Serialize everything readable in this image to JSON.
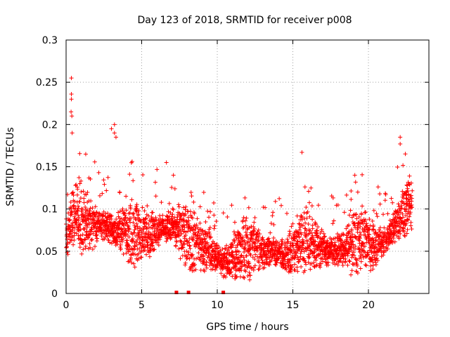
{
  "chart_data": {
    "type": "scatter",
    "title": "Day 123 of 2018, SRMTID for receiver p008",
    "xlabel": "GPS time / hours",
    "ylabel": "SRMTID / TECUs",
    "xlim": [
      0,
      24
    ],
    "ylim": [
      0,
      0.3
    ],
    "x_ticks": [
      0,
      5,
      10,
      15,
      20
    ],
    "y_ticks": [
      0,
      0.05,
      0.1,
      0.15,
      0.2,
      0.25,
      0.3
    ],
    "x_tick_labels": [
      "0",
      "5",
      "10",
      "15",
      "20"
    ],
    "y_tick_labels": [
      "0",
      "0.05",
      "0.1",
      "0.15",
      "0.2",
      "0.25",
      "0.3"
    ],
    "grid": true,
    "marker": "+",
    "marker_color": "#ff0000",
    "series_name": "SRMTID",
    "trend_knots": {
      "x": [
        0,
        0.3,
        0.6,
        1,
        2,
        3,
        4,
        5,
        6,
        7,
        7.6,
        8.5,
        9.5,
        10.5,
        11.5,
        12.5,
        13.5,
        14.5,
        15.5,
        16.5,
        17.5,
        18.5,
        19.5,
        20.5,
        21.5,
        22.2,
        22.9
      ],
      "y": [
        0.062,
        0.085,
        0.095,
        0.085,
        0.082,
        0.078,
        0.072,
        0.068,
        0.075,
        0.08,
        0.072,
        0.06,
        0.05,
        0.035,
        0.05,
        0.055,
        0.05,
        0.045,
        0.06,
        0.06,
        0.05,
        0.055,
        0.065,
        0.055,
        0.07,
        0.095,
        0.11
      ]
    },
    "spikes": [
      {
        "x": 0.35,
        "y": 0.255
      },
      {
        "x": 0.35,
        "y": 0.236
      },
      {
        "x": 0.35,
        "y": 0.23
      },
      {
        "x": 0.33,
        "y": 0.215
      },
      {
        "x": 0.38,
        "y": 0.21
      },
      {
        "x": 0.4,
        "y": 0.19
      },
      {
        "x": 3.0,
        "y": 0.195
      },
      {
        "x": 3.2,
        "y": 0.2
      },
      {
        "x": 3.2,
        "y": 0.19
      },
      {
        "x": 3.3,
        "y": 0.185
      },
      {
        "x": 1.3,
        "y": 0.165
      },
      {
        "x": 15.6,
        "y": 0.167
      },
      {
        "x": 22.1,
        "y": 0.185
      },
      {
        "x": 22.1,
        "y": 0.177
      },
      {
        "x": 7.1,
        "y": 0.14
      },
      {
        "x": 19.1,
        "y": 0.14
      }
    ],
    "gap_markers_x": [
      7.3,
      8.1,
      10.4
    ]
  }
}
